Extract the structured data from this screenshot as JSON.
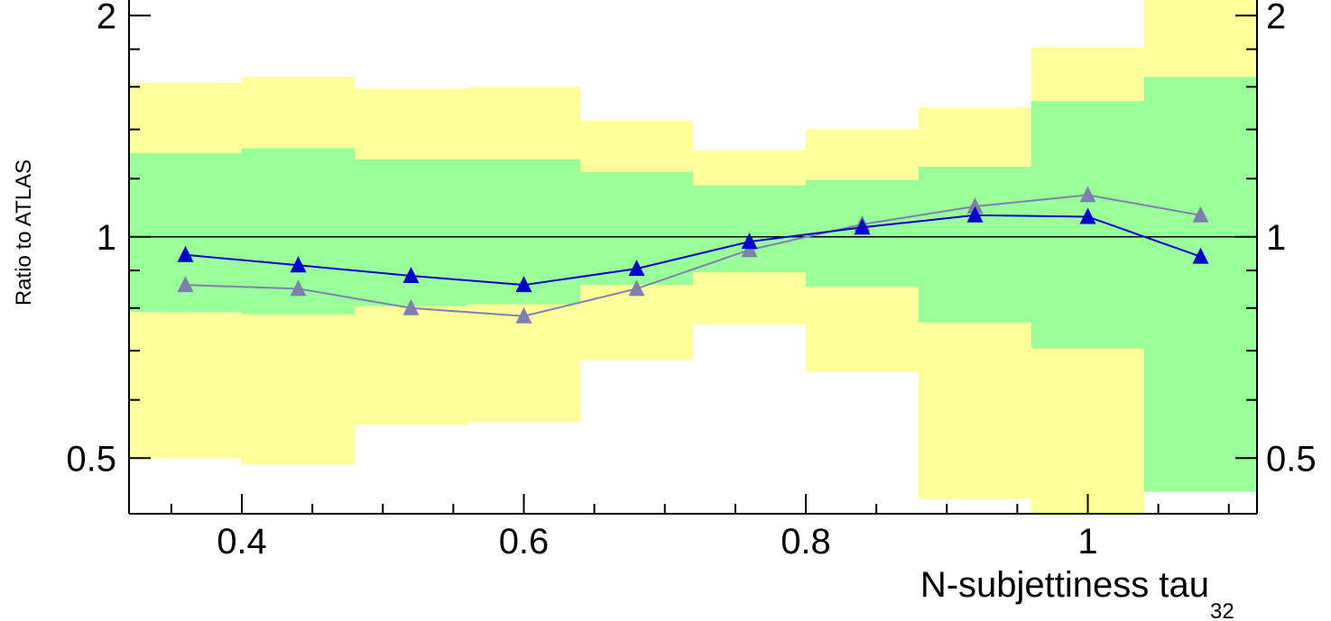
{
  "chart_data": {
    "type": "line",
    "ylabel": "Ratio to ATLAS",
    "xlabel": "N-subjettiness tau",
    "xlabel_subscript": "32",
    "xlim": [
      0.32,
      1.12
    ],
    "ylim": [
      0.42,
      2.1
    ],
    "log_y": true,
    "x_ticks": [
      {
        "value": 0.4,
        "label": "0.4"
      },
      {
        "value": 0.6,
        "label": "0.6"
      },
      {
        "value": 0.8,
        "label": "0.8"
      },
      {
        "value": 1.0,
        "label": "1"
      }
    ],
    "y_ticks": [
      {
        "value": 0.5,
        "label": "0.5"
      },
      {
        "value": 1,
        "label": "1"
      },
      {
        "value": 2,
        "label": "2"
      }
    ],
    "y_ticks_right": [
      {
        "value": 0.5,
        "label": "0.5"
      },
      {
        "value": 1,
        "label": "1"
      },
      {
        "value": 2,
        "label": "2"
      }
    ],
    "reference_line": 1,
    "bins": [
      {
        "lo": 0.32,
        "hi": 0.4,
        "yellow": [
          0.5,
          1.62
        ],
        "green": [
          0.79,
          1.3
        ]
      },
      {
        "lo": 0.4,
        "hi": 0.48,
        "yellow": [
          0.49,
          1.65
        ],
        "green": [
          0.785,
          1.32
        ]
      },
      {
        "lo": 0.48,
        "hi": 0.56,
        "yellow": [
          0.555,
          1.59
        ],
        "green": [
          0.805,
          1.275
        ]
      },
      {
        "lo": 0.56,
        "hi": 0.64,
        "yellow": [
          0.56,
          1.6
        ],
        "green": [
          0.81,
          1.275
        ]
      },
      {
        "lo": 0.64,
        "hi": 0.72,
        "yellow": [
          0.68,
          1.44
        ],
        "green": [
          0.86,
          1.225
        ]
      },
      {
        "lo": 0.72,
        "hi": 0.8,
        "yellow": [
          0.76,
          1.31
        ],
        "green": [
          0.895,
          1.175
        ]
      },
      {
        "lo": 0.8,
        "hi": 0.88,
        "yellow": [
          0.655,
          1.4
        ],
        "green": [
          0.855,
          1.195
        ]
      },
      {
        "lo": 0.88,
        "hi": 0.96,
        "yellow": [
          0.44,
          1.5
        ],
        "green": [
          0.765,
          1.245
        ]
      },
      {
        "lo": 0.96,
        "hi": 1.04,
        "yellow": [
          0.42,
          1.81
        ],
        "green": [
          0.705,
          1.53
        ]
      },
      {
        "lo": 1.04,
        "hi": 1.12,
        "yellow": [
          0.45,
          2.1
        ],
        "green": [
          0.45,
          1.65
        ]
      }
    ],
    "series": [
      {
        "x": [
          0.36,
          0.44,
          0.52,
          0.6,
          0.68,
          0.76,
          0.84,
          0.92,
          1.0,
          1.08
        ],
        "y": [
          0.945,
          0.915,
          0.885,
          0.86,
          0.905,
          0.985,
          1.03,
          1.07,
          1.065,
          0.94
        ]
      },
      {
        "x": [
          0.36,
          0.44,
          0.52,
          0.6,
          0.68,
          0.76,
          0.84,
          0.92,
          1.0,
          1.08
        ],
        "y": [
          0.86,
          0.85,
          0.8,
          0.78,
          0.85,
          0.96,
          1.04,
          1.1,
          1.14,
          1.07
        ]
      }
    ],
    "colors": {
      "yellow_band": "#ffff99",
      "green_band": "#99ff99",
      "series_1": "#0000cc",
      "series_2": "#8080b0",
      "axis": "#000000"
    }
  }
}
